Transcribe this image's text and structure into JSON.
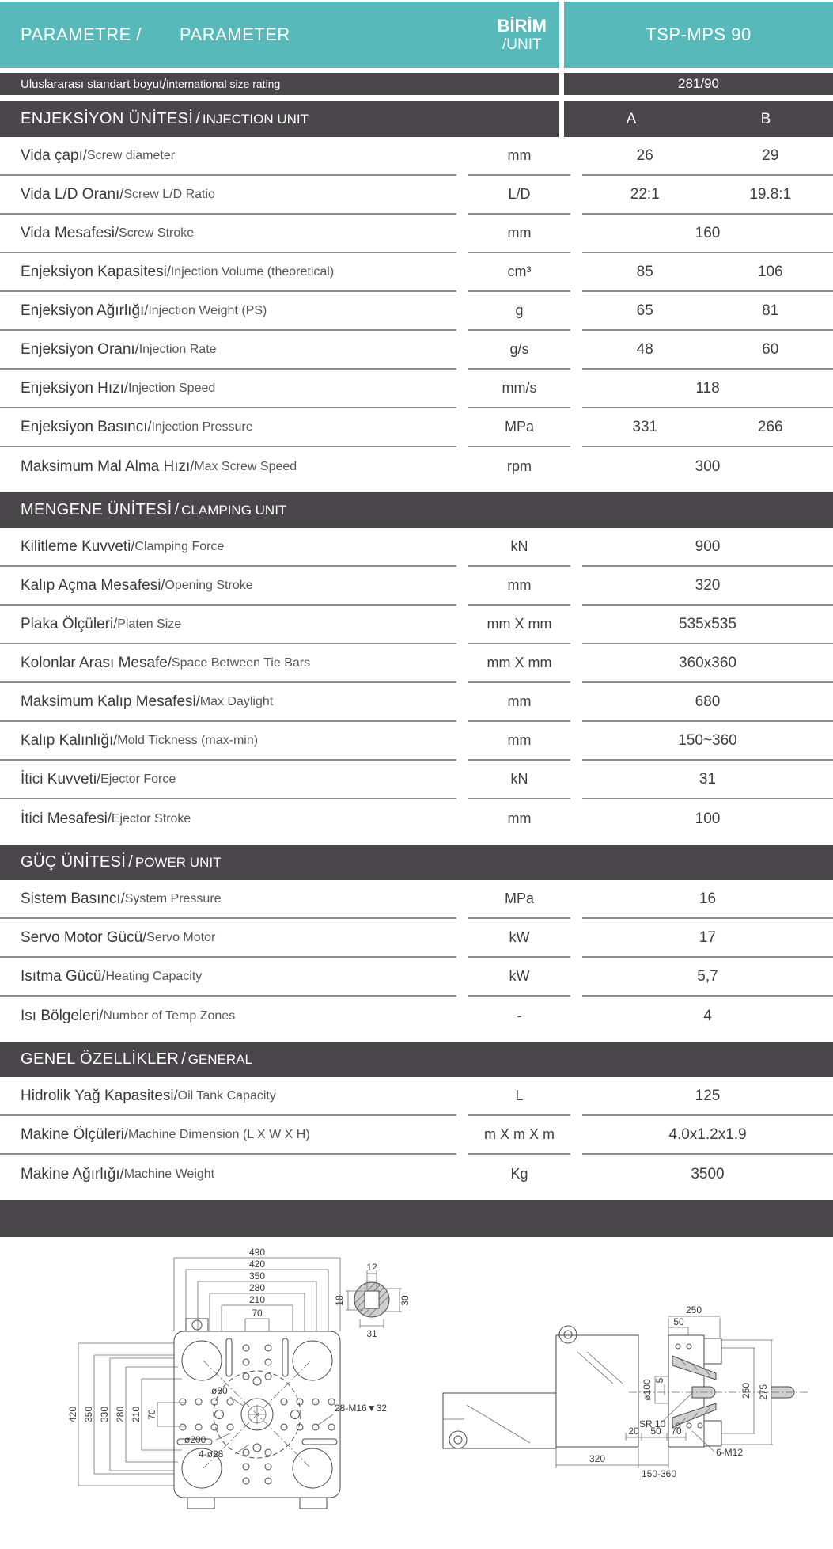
{
  "separator": " / ",
  "colors": {
    "teal": "#58b9ba",
    "dark_bar": "#494749",
    "divider": "#8d8d8d"
  },
  "header": {
    "parameter_tr": "PARAMETRE /",
    "parameter_en": "PARAMETER",
    "unit_tr": "BİRİM",
    "unit_en": "/UNIT",
    "model": "TSP-MPS 90"
  },
  "size_rating": {
    "label_tr": "Uluslararası standart boyut",
    "label_en": "international size rating",
    "value": "281/90"
  },
  "columns": {
    "a": "A",
    "b": "B"
  },
  "sections": [
    {
      "title_tr": "ENJEKSİYON ÜNİTESİ",
      "title_en": "INJECTION UNIT",
      "show_ab": true,
      "rows": [
        {
          "tr": "Vida çapı",
          "en": "Screw diameter",
          "unit": "mm",
          "a": "26",
          "b": "29"
        },
        {
          "tr": "Vida L/D Oranı",
          "en": "Screw L/D Ratio",
          "unit": "L/D",
          "a": "22:1",
          "b": "19.8:1"
        },
        {
          "tr": "Vida Mesafesi",
          "en": "Screw Stroke",
          "unit": "mm",
          "span": "160"
        },
        {
          "tr": "Enjeksiyon Kapasitesi",
          "en": "Injection Volume (theoretical)",
          "unit": "cm³",
          "a": "85",
          "b": "106"
        },
        {
          "tr": "Enjeksiyon Ağırlığı",
          "en": "Injection Weight (PS)",
          "unit": "g",
          "a": "65",
          "b": "81"
        },
        {
          "tr": "Enjeksiyon Oranı",
          "en": "Injection Rate",
          "unit": "g/s",
          "a": "48",
          "b": "60"
        },
        {
          "tr": "Enjeksiyon Hızı",
          "en": "Injection Speed",
          "unit": "mm/s",
          "span": "118"
        },
        {
          "tr": "Enjeksiyon Basıncı",
          "en": "Injection Pressure",
          "unit": "MPa",
          "a": "331",
          "b": "266"
        },
        {
          "tr": "Maksimum Mal Alma Hızı",
          "en": "Max Screw Speed",
          "unit": "rpm",
          "span": "300"
        }
      ]
    },
    {
      "title_tr": "MENGENE ÜNİTESİ",
      "title_en": "CLAMPING UNIT",
      "show_ab": false,
      "rows": [
        {
          "tr": "Kilitleme Kuvveti",
          "en": "Clamping Force",
          "unit": "kN",
          "span": "900"
        },
        {
          "tr": "Kalıp Açma Mesafesi",
          "en": "Opening Stroke",
          "unit": "mm",
          "span": "320"
        },
        {
          "tr": "Plaka Ölçüleri",
          "en": "Platen Size",
          "unit": "mm X mm",
          "span": "535x535"
        },
        {
          "tr": "Kolonlar Arası Mesafe",
          "en": "Space Between Tie Bars",
          "unit": "mm X mm",
          "span": "360x360"
        },
        {
          "tr": "Maksimum Kalıp Mesafesi",
          "en": "Max Daylight",
          "unit": "mm",
          "span": "680"
        },
        {
          "tr": "Kalıp Kalınlığı",
          "en": "Mold Tickness (max-min)",
          "unit": "mm",
          "span": "150~360"
        },
        {
          "tr": "İtici Kuvveti",
          "en": "Ejector Force",
          "unit": "kN",
          "span": "31"
        },
        {
          "tr": "İtici Mesafesi",
          "en": "Ejector Stroke",
          "unit": "mm",
          "span": "100"
        }
      ]
    },
    {
      "title_tr": "GÜÇ ÜNİTESİ",
      "title_en": "POWER UNIT",
      "show_ab": false,
      "rows": [
        {
          "tr": "Sistem Basıncı",
          "en": "System Pressure",
          "unit": "MPa",
          "span": "16"
        },
        {
          "tr": "Servo Motor Gücü",
          "en": "Servo Motor",
          "unit": "kW",
          "span": "17"
        },
        {
          "tr": "Isıtma Gücü",
          "en": "Heating Capacity",
          "unit": "kW",
          "span": "5,7"
        },
        {
          "tr": "Isı Bölgeleri",
          "en": "Number of Temp Zones",
          "unit": "-",
          "span": "4"
        }
      ]
    },
    {
      "title_tr": "GENEL ÖZELLİKLER",
      "title_en": "GENERAL",
      "show_ab": false,
      "rows": [
        {
          "tr": "Hidrolik Yağ Kapasitesi",
          "en": "Oil Tank Capacity",
          "unit": "L",
          "span": "125"
        },
        {
          "tr": "Makine Ölçüleri",
          "en": "Machine Dimension (L X W X H)",
          "unit": "m X m X  m",
          "span": "4.0x1.2x1.9"
        },
        {
          "tr": "Makine Ağırlığı",
          "en": "Machine Weight",
          "unit": "Kg",
          "span": "3500"
        }
      ]
    }
  ],
  "drawings": {
    "platen": {
      "top_dims": [
        "490",
        "420",
        "350",
        "280",
        "210",
        "70"
      ],
      "left_dims": [
        "420",
        "350",
        "330",
        "280",
        "210",
        "70"
      ],
      "label_d80": "ø80",
      "label_d200": "ø200",
      "label_4d28": "4-ø28",
      "label_m16": "28-M16▼32"
    },
    "nozzle": {
      "w_top": "12",
      "h_left": "18",
      "h_right": "30",
      "w_bottom": "31"
    },
    "side": {
      "d250_top": "250",
      "d50": "50",
      "d_dia100": "ø100",
      "d5": "5",
      "sr10": "SR 10",
      "d250_right": "250",
      "d275": "275",
      "d20": "20",
      "d50b": "50",
      "d70": "70",
      "m12": "6-M12",
      "d320": "320",
      "d_gap": "150-360"
    }
  }
}
